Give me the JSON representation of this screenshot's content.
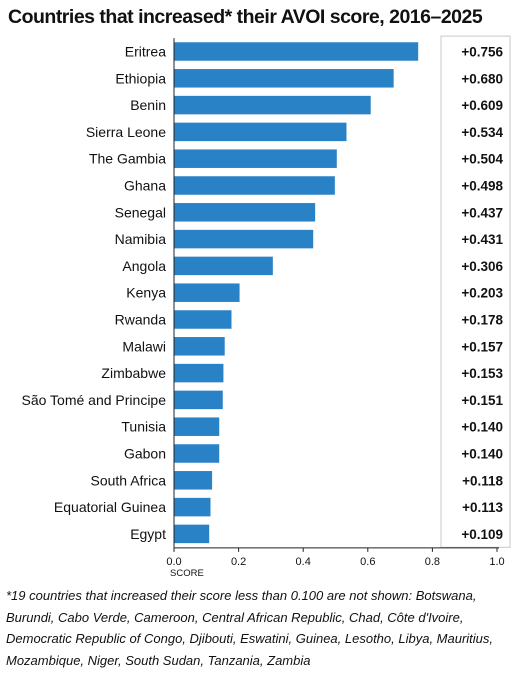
{
  "title": "Countries that increased* their AVOI score, 2016–2025",
  "footnote": "*19 countries that increased their score less than 0.100 are not shown: Botswana, Burundi, Cabo Verde, Cameroon, Central African Republic, Chad, Côte d'Ivoire, Democratic Republic of Congo, Djibouti, Eswatini, Guinea, Lesotho, Libya, Mauritius, Mozambique, Niger, South Sudan, Tanzania, Zambia",
  "colors": {
    "bar": "#2a82c6",
    "axis": "#222222",
    "label_box": "#c8c8c8"
  },
  "chart_data": {
    "type": "bar",
    "orientation": "horizontal",
    "categories": [
      "Eritrea",
      "Ethiopia",
      "Benin",
      "Sierra Leone",
      "The Gambia",
      "Ghana",
      "Senegal",
      "Namibia",
      "Angola",
      "Kenya",
      "Rwanda",
      "Malawi",
      "Zimbabwe",
      "São Tomé and Principe",
      "Tunisia",
      "Gabon",
      "South Africa",
      "Equatorial Guinea",
      "Egypt"
    ],
    "values": [
      0.756,
      0.68,
      0.609,
      0.534,
      0.504,
      0.498,
      0.437,
      0.431,
      0.306,
      0.203,
      0.178,
      0.157,
      0.153,
      0.151,
      0.14,
      0.14,
      0.118,
      0.113,
      0.109
    ],
    "labels": [
      "+0.756",
      "+0.680",
      "+0.609",
      "+0.534",
      "+0.504",
      "+0.498",
      "+0.437",
      "+0.431",
      "+0.306",
      "+0.203",
      "+0.178",
      "+0.157",
      "+0.153",
      "+0.151",
      "+0.140",
      "+0.140",
      "+0.118",
      "+0.113",
      "+0.109"
    ],
    "xticks": [
      "0.0",
      "0.2",
      "0.4",
      "0.6",
      "0.8",
      "1.0"
    ],
    "xlabel": "SCORE",
    "xlim": [
      0,
      1.0
    ],
    "grid": false,
    "legend": "none"
  }
}
